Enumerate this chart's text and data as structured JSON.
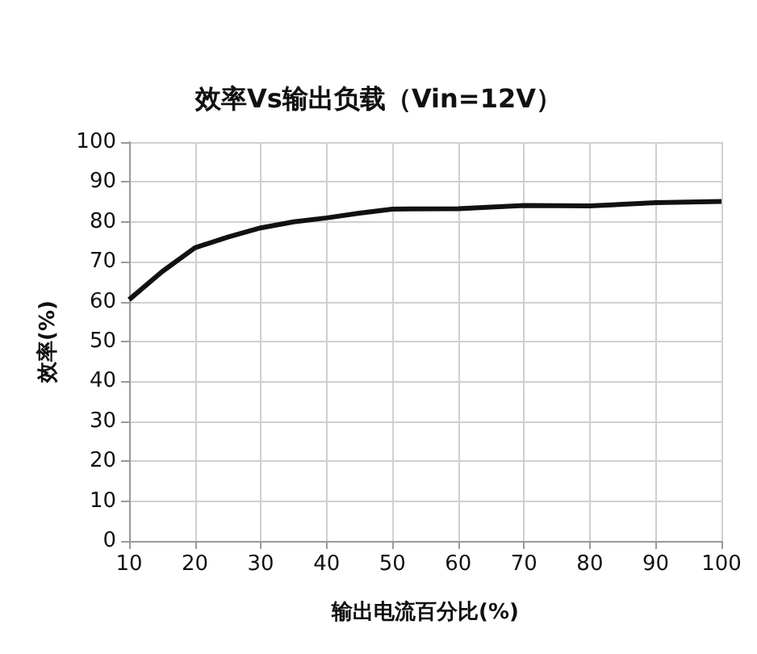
{
  "chart_data": {
    "type": "line",
    "title": "效率Vs输出负载（Vin=12V）",
    "xlabel": "输出电流百分比(%)",
    "ylabel": "效率(%)",
    "x": [
      10,
      15,
      20,
      25,
      30,
      35,
      40,
      45,
      50,
      60,
      70,
      80,
      90,
      100
    ],
    "series": [
      {
        "color": "#111111",
        "values": [
          60.5,
          67.5,
          73.5,
          76.2,
          78.5,
          80,
          81,
          82.2,
          83.2,
          83.3,
          84.1,
          84,
          84.8,
          85.1
        ]
      }
    ],
    "xlim": [
      10,
      100
    ],
    "xticks": [
      10,
      20,
      30,
      40,
      50,
      60,
      70,
      80,
      90,
      100
    ],
    "ylim": [
      0,
      100
    ],
    "yticks": [
      0,
      10,
      20,
      30,
      40,
      50,
      60,
      70,
      80,
      90,
      100
    ],
    "grid": true,
    "marker": "none",
    "line_style": "solid"
  }
}
